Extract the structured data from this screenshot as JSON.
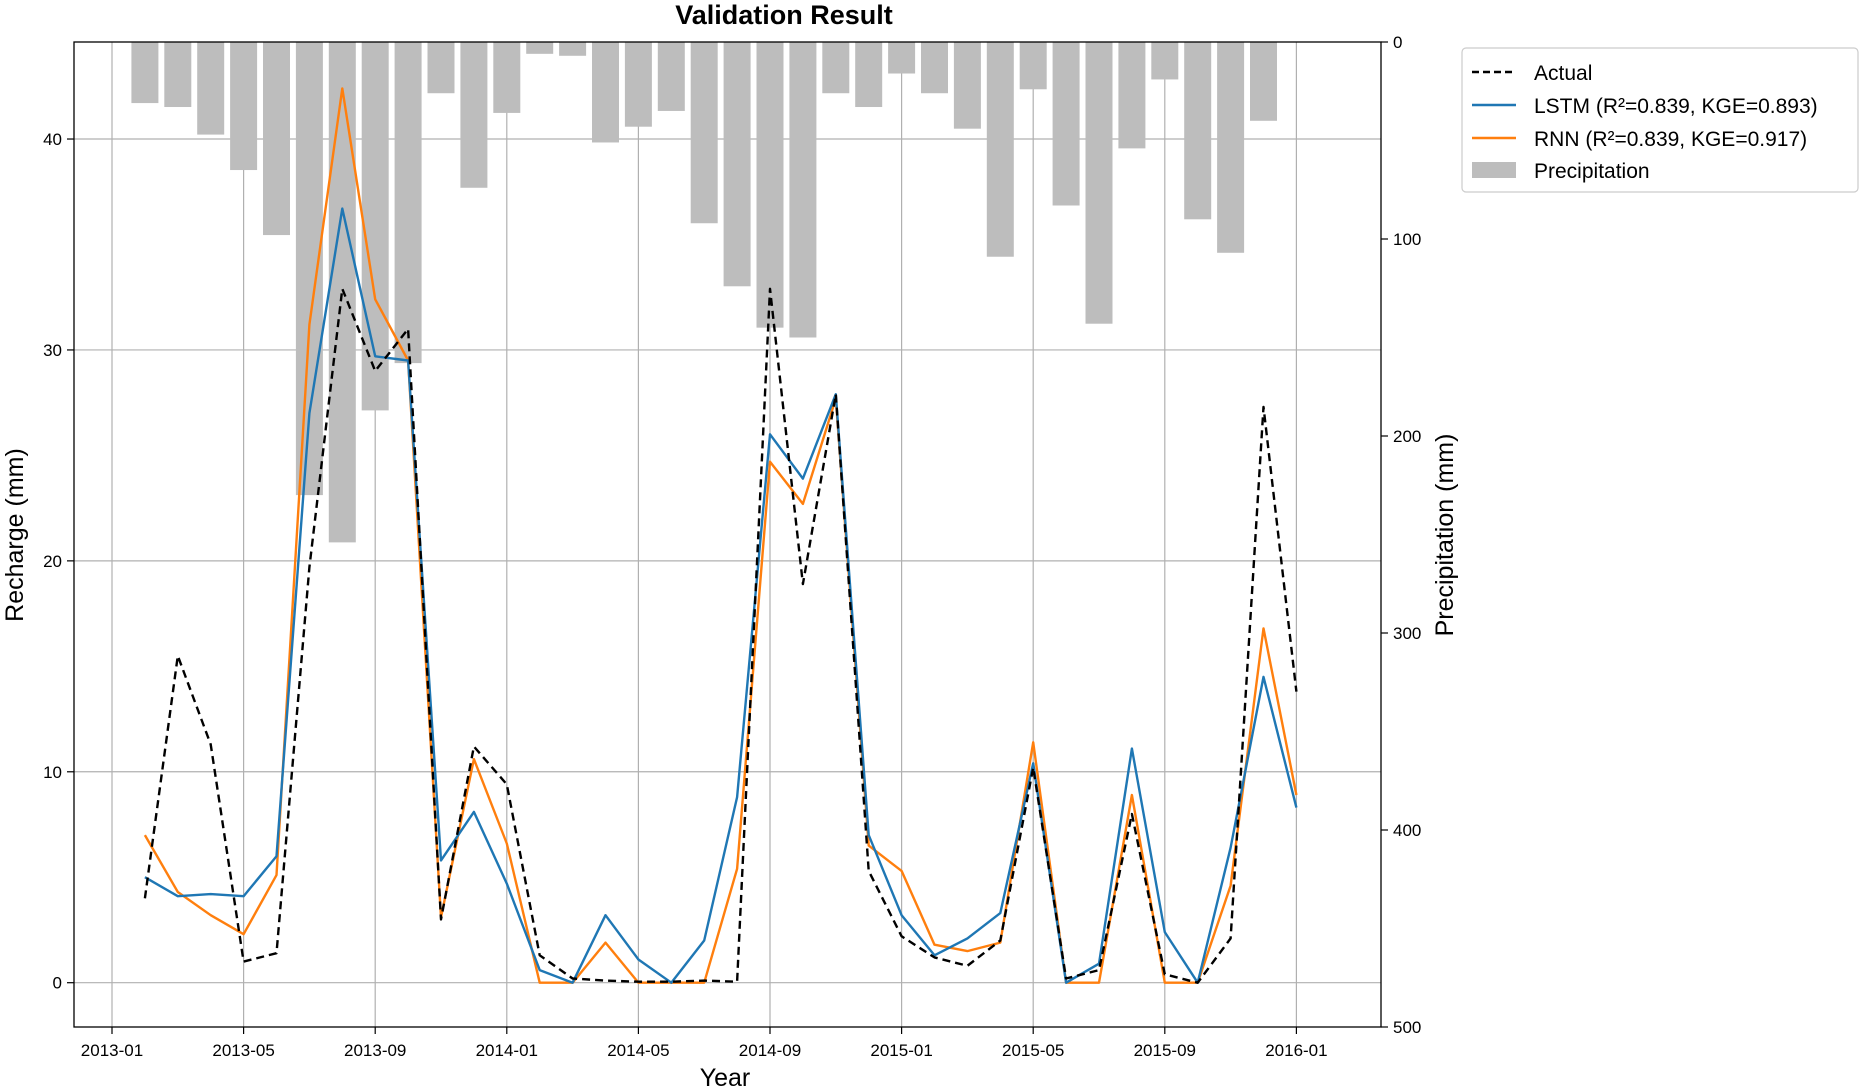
{
  "chart_data": {
    "type": "line",
    "title": "Validation Result",
    "xlabel": "Year",
    "ylabel_left": "Recharge (mm)",
    "ylabel_right": "Precipitation (mm)",
    "x_ticks": [
      "2013-01",
      "2013-05",
      "2013-09",
      "2014-01",
      "2014-05",
      "2014-09",
      "2015-01",
      "2015-05",
      "2015-09",
      "2016-01"
    ],
    "y_left_ticks": [
      0,
      10,
      20,
      30,
      40
    ],
    "y_right_ticks": [
      0,
      100,
      200,
      300,
      400,
      500
    ],
    "ylim_left": [
      -2.1,
      44.6
    ],
    "ylim_right": [
      500,
      0
    ],
    "right_axis_inverted": true,
    "grid": true,
    "legend_position": "outside-top-right",
    "dates": [
      "2013-02",
      "2013-03",
      "2013-04",
      "2013-05",
      "2013-06",
      "2013-07",
      "2013-08",
      "2013-09",
      "2013-10",
      "2013-11",
      "2013-12",
      "2014-01",
      "2014-02",
      "2014-03",
      "2014-04",
      "2014-05",
      "2014-06",
      "2014-07",
      "2014-08",
      "2014-09",
      "2014-10",
      "2014-11",
      "2014-12",
      "2015-01",
      "2015-02",
      "2015-03",
      "2015-04",
      "2015-05",
      "2015-06",
      "2015-07",
      "2015-08",
      "2015-09",
      "2015-10",
      "2015-11",
      "2015-12",
      "2016-01"
    ],
    "series": [
      {
        "name": "Actual",
        "style": "dashed",
        "color": "#000000",
        "axis": "left",
        "values": [
          4.0,
          15.5,
          11.3,
          1.0,
          1.4,
          19.7,
          32.9,
          29.0,
          31.0,
          3.0,
          11.2,
          9.4,
          1.3,
          0.2,
          0.1,
          0.05,
          0.05,
          0.1,
          0.05,
          32.9,
          18.9,
          27.9,
          5.3,
          2.2,
          1.2,
          0.8,
          2.0,
          10.2,
          0.2,
          0.6,
          8.0,
          0.4,
          0.0,
          2.1,
          27.3,
          13.8
        ]
      },
      {
        "name": "LSTM (R²=0.839, KGE=0.893)",
        "style": "solid",
        "color": "#1f77b4",
        "axis": "left",
        "values": [
          5.0,
          4.1,
          4.2,
          4.1,
          6.0,
          27.0,
          36.7,
          29.7,
          29.5,
          5.8,
          8.1,
          4.7,
          0.6,
          0.0,
          3.2,
          1.1,
          0.0,
          2.0,
          8.8,
          26.0,
          23.9,
          27.9,
          7.0,
          3.2,
          1.3,
          2.1,
          3.3,
          10.4,
          0.0,
          0.9,
          11.1,
          2.4,
          0.0,
          6.4,
          14.5,
          8.3
        ]
      },
      {
        "name": "RNN (R²=0.839, KGE=0.917)",
        "style": "solid",
        "color": "#ff7f0e",
        "axis": "left",
        "values": [
          7.0,
          4.3,
          3.2,
          2.3,
          5.1,
          31.2,
          42.4,
          32.4,
          29.5,
          3.1,
          10.6,
          6.6,
          0.0,
          0.0,
          1.9,
          0.0,
          0.0,
          0.0,
          5.4,
          24.7,
          22.7,
          27.7,
          6.5,
          5.3,
          1.8,
          1.5,
          1.9,
          11.4,
          0.0,
          0.0,
          8.9,
          0.0,
          0.0,
          4.6,
          16.8,
          8.9
        ]
      }
    ],
    "bar_series": {
      "name": "Precipitation",
      "color": "#bdbdbd",
      "axis": "right",
      "values": [
        31,
        33,
        47,
        65,
        98,
        230,
        254,
        187,
        163,
        26,
        74,
        36,
        6,
        7,
        51,
        43,
        35,
        92,
        124,
        145,
        150,
        26,
        33,
        16,
        26,
        44,
        109,
        24,
        83,
        143,
        54,
        19,
        90,
        107,
        40,
        null
      ]
    }
  }
}
